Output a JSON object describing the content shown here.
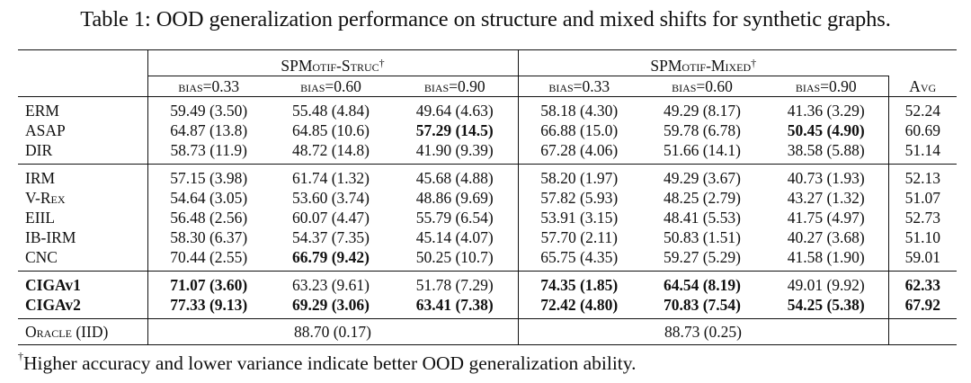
{
  "caption": "Table 1: OOD generalization performance on structure and mixed shifts for synthetic graphs.",
  "groups": {
    "struc": "SPMotif-Struc",
    "mixed": "SPMotif-Mixed",
    "dagger": "†"
  },
  "columns": [
    "bias=0.33",
    "bias=0.60",
    "bias=0.90",
    "bias=0.33",
    "bias=0.60",
    "bias=0.90",
    "Avg"
  ],
  "sections": [
    [
      {
        "method": "ERM",
        "cells": [
          "59.49 (3.50)",
          "55.48 (4.84)",
          "49.64 (4.63)",
          "58.18 (4.30)",
          "49.29 (8.17)",
          "41.36 (3.29)",
          "52.24"
        ],
        "bold": [
          false,
          false,
          false,
          false,
          false,
          false,
          false
        ],
        "method_bold": false
      },
      {
        "method": "ASAP",
        "cells": [
          "64.87 (13.8)",
          "64.85 (10.6)",
          "57.29 (14.5)",
          "66.88 (15.0)",
          "59.78 (6.78)",
          "50.45 (4.90)",
          "60.69"
        ],
        "bold": [
          false,
          false,
          true,
          false,
          false,
          true,
          false
        ],
        "method_bold": false
      },
      {
        "method": "DIR",
        "cells": [
          "58.73 (11.9)",
          "48.72 (14.8)",
          "41.90 (9.39)",
          "67.28 (4.06)",
          "51.66 (14.1)",
          "38.58 (5.88)",
          "51.14"
        ],
        "bold": [
          false,
          false,
          false,
          false,
          false,
          false,
          false
        ],
        "method_bold": false
      }
    ],
    [
      {
        "method": "IRM",
        "cells": [
          "57.15 (3.98)",
          "61.74 (1.32)",
          "45.68 (4.88)",
          "58.20 (1.97)",
          "49.29 (3.67)",
          "40.73 (1.93)",
          "52.13"
        ],
        "bold": [
          false,
          false,
          false,
          false,
          false,
          false,
          false
        ],
        "method_bold": false
      },
      {
        "method": "V-Rex",
        "cells": [
          "54.64 (3.05)",
          "53.60 (3.74)",
          "48.86 (9.69)",
          "57.82 (5.93)",
          "48.25 (2.79)",
          "43.27 (1.32)",
          "51.07"
        ],
        "bold": [
          false,
          false,
          false,
          false,
          false,
          false,
          false
        ],
        "method_bold": false
      },
      {
        "method": "EIIL",
        "cells": [
          "56.48 (2.56)",
          "60.07 (4.47)",
          "55.79 (6.54)",
          "53.91 (3.15)",
          "48.41 (5.53)",
          "41.75 (4.97)",
          "52.73"
        ],
        "bold": [
          false,
          false,
          false,
          false,
          false,
          false,
          false
        ],
        "method_bold": false
      },
      {
        "method": "IB-IRM",
        "cells": [
          "58.30 (6.37)",
          "54.37 (7.35)",
          "45.14 (4.07)",
          "57.70 (2.11)",
          "50.83 (1.51)",
          "40.27 (3.68)",
          "51.10"
        ],
        "bold": [
          false,
          false,
          false,
          false,
          false,
          false,
          false
        ],
        "method_bold": false
      },
      {
        "method": "CNC",
        "cells": [
          "70.44 (2.55)",
          "66.79 (9.42)",
          "50.25 (10.7)",
          "65.75 (4.35)",
          "59.27 (5.29)",
          "41.58 (1.90)",
          "59.01"
        ],
        "bold": [
          false,
          true,
          false,
          false,
          false,
          false,
          false
        ],
        "method_bold": false
      }
    ],
    [
      {
        "method": "CIGAv1",
        "cells": [
          "71.07 (3.60)",
          "63.23 (9.61)",
          "51.78 (7.29)",
          "74.35 (1.85)",
          "64.54 (8.19)",
          "49.01 (9.92)",
          "62.33"
        ],
        "bold": [
          true,
          false,
          false,
          true,
          true,
          false,
          true
        ],
        "method_bold": true
      },
      {
        "method": "CIGAv2",
        "cells": [
          "77.33 (9.13)",
          "69.29 (3.06)",
          "63.41 (7.38)",
          "72.42 (4.80)",
          "70.83 (7.54)",
          "54.25 (5.38)",
          "67.92"
        ],
        "bold": [
          true,
          true,
          true,
          true,
          true,
          true,
          true
        ],
        "method_bold": true
      }
    ]
  ],
  "oracle": {
    "method": "Oracle (IID)",
    "struc": "88.70 (0.17)",
    "mixed": "88.73 (0.25)"
  },
  "footnote": {
    "mark": "†",
    "text": "Higher accuracy and lower variance indicate better OOD generalization ability."
  }
}
